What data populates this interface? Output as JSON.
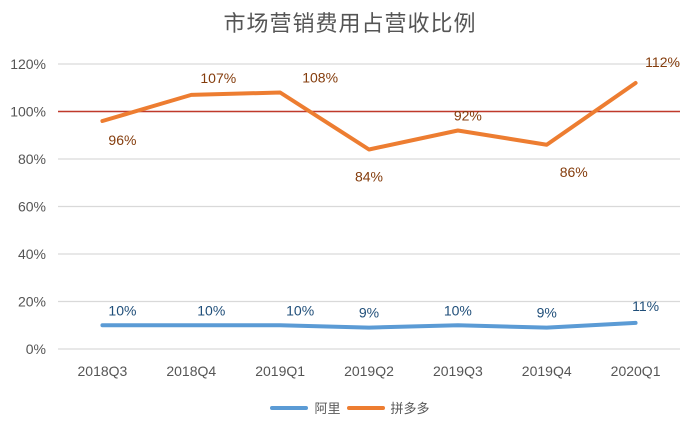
{
  "chart_data": {
    "type": "line",
    "title": "市场营销费用占营收比例",
    "categories": [
      "2018Q3",
      "2018Q4",
      "2019Q1",
      "2019Q2",
      "2019Q3",
      "2019Q4",
      "2020Q1"
    ],
    "series": [
      {
        "name": "阿里",
        "color": "#5B9BD5",
        "label_color": "#1F4E79",
        "values": [
          10,
          10,
          10,
          9,
          10,
          9,
          11
        ],
        "labels": [
          "10%",
          "10%",
          "10%",
          "9%",
          "10%",
          "9%",
          "11%"
        ]
      },
      {
        "name": "拼多多",
        "color": "#ED7D31",
        "label_color": "#843C0C",
        "values": [
          96,
          107,
          108,
          84,
          92,
          86,
          112
        ],
        "labels": [
          "96%",
          "107%",
          "108%",
          "84%",
          "92%",
          "86%",
          "112%"
        ]
      }
    ],
    "reference_line": {
      "value": 100,
      "color": "#C0392B"
    },
    "yticks": [
      "0%",
      "20%",
      "40%",
      "60%",
      "80%",
      "100%",
      "120%"
    ],
    "ylim": [
      0,
      120
    ],
    "xlabel": "",
    "ylabel": "",
    "grid": true,
    "legend_position": "bottom"
  },
  "legend": {
    "items": [
      "阿里",
      "拼多多"
    ]
  }
}
